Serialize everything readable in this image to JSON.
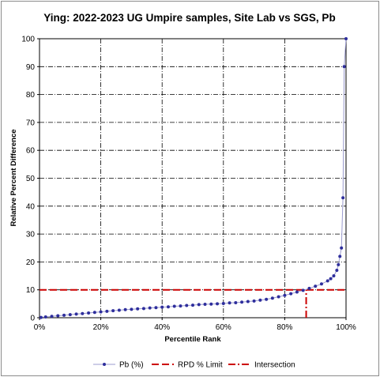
{
  "chart_data": {
    "type": "line",
    "title": "Ying: 2022-2023 UG Umpire samples, Site Lab vs SGS, Pb",
    "xlabel": "Percentile Rank",
    "ylabel": "Relative Percent Difference",
    "xlim": [
      0,
      100
    ],
    "ylim": [
      0,
      100
    ],
    "x_ticks": [
      "0%",
      "20%",
      "40%",
      "60%",
      "80%",
      "100%"
    ],
    "y_ticks": [
      "0",
      "10",
      "20",
      "30",
      "40",
      "50",
      "60",
      "70",
      "80",
      "90",
      "100"
    ],
    "grid": true,
    "legend_position": "bottom",
    "series": [
      {
        "name": "Pb (%)",
        "color": "#2e2e9c",
        "points": [
          [
            0.5,
            0.1
          ],
          [
            2,
            0.3
          ],
          [
            4,
            0.5
          ],
          [
            6,
            0.7
          ],
          [
            8,
            0.9
          ],
          [
            10,
            1.1
          ],
          [
            12,
            1.3
          ],
          [
            14,
            1.5
          ],
          [
            16,
            1.7
          ],
          [
            18,
            1.9
          ],
          [
            20,
            2.1
          ],
          [
            22,
            2.3
          ],
          [
            24,
            2.5
          ],
          [
            26,
            2.7
          ],
          [
            28,
            2.9
          ],
          [
            30,
            3.0
          ],
          [
            32,
            3.2
          ],
          [
            34,
            3.3
          ],
          [
            36,
            3.5
          ],
          [
            38,
            3.6
          ],
          [
            40,
            3.8
          ],
          [
            42,
            3.9
          ],
          [
            44,
            4.1
          ],
          [
            46,
            4.2
          ],
          [
            48,
            4.4
          ],
          [
            50,
            4.5
          ],
          [
            52,
            4.7
          ],
          [
            54,
            4.8
          ],
          [
            56,
            4.9
          ],
          [
            58,
            5.0
          ],
          [
            60,
            5.1
          ],
          [
            62,
            5.3
          ],
          [
            64,
            5.4
          ],
          [
            66,
            5.6
          ],
          [
            68,
            5.8
          ],
          [
            70,
            6.0
          ],
          [
            72,
            6.3
          ],
          [
            74,
            6.6
          ],
          [
            76,
            7.0
          ],
          [
            78,
            7.5
          ],
          [
            80,
            8.0
          ],
          [
            82,
            8.6
          ],
          [
            84,
            9.2
          ],
          [
            86,
            9.8
          ],
          [
            88,
            10.5
          ],
          [
            90,
            11.3
          ],
          [
            92,
            12.1
          ],
          [
            94,
            13.2
          ],
          [
            95,
            14.0
          ],
          [
            96,
            15.0
          ],
          [
            97,
            17.0
          ],
          [
            97.5,
            19.0
          ],
          [
            98,
            22.0
          ],
          [
            98.5,
            25.0
          ],
          [
            99,
            43.0
          ],
          [
            99.4,
            90.0
          ],
          [
            100,
            100.0
          ]
        ]
      },
      {
        "name": "RPD % Limit",
        "color": "#cc0000",
        "points": [
          [
            0,
            10
          ],
          [
            100,
            10
          ]
        ]
      },
      {
        "name": "Intersection",
        "color": "#cc0000",
        "points": [
          [
            87,
            0
          ],
          [
            87,
            10
          ]
        ]
      }
    ]
  }
}
